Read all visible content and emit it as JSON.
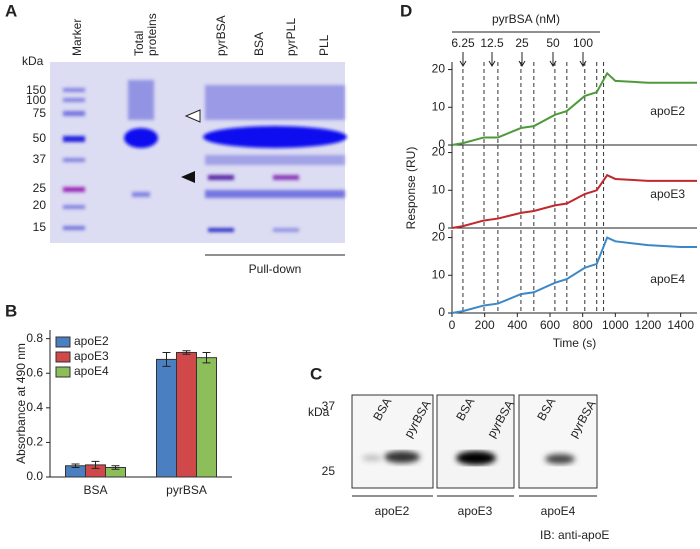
{
  "panels": {
    "a": {
      "label": "A",
      "unit": "kDa",
      "markers": [
        150,
        100,
        75,
        50,
        37,
        25,
        20,
        15
      ],
      "lanes": [
        "Marker",
        "Total",
        "proteins",
        "pyrBSA",
        "BSA",
        "pyrPLL",
        "PLL"
      ],
      "pulldown": "Pull-down"
    },
    "b": {
      "label": "B"
    },
    "c": {
      "label": "C",
      "unit": "kDa",
      "markers": [
        37,
        25
      ],
      "lanes": [
        "BSA",
        "pyrBSA",
        "BSA",
        "pyrBSA",
        "BSA",
        "pyrBSA"
      ],
      "blots": [
        "apoE2",
        "apoE3",
        "apoE4"
      ],
      "antibody": "IB: anti-apoE"
    },
    "d": {
      "label": "D",
      "header": "pyrBSA (nM)",
      "concentrations": [
        6.25,
        12.5,
        25,
        50,
        100
      ],
      "ylabel": "Response (RU)"
    }
  },
  "chart_data": [
    {
      "type": "bar",
      "ylabel": "Absorbance at 490 nm",
      "categories": [
        "BSA",
        "pyrBSA"
      ],
      "series": [
        {
          "name": "apoE2",
          "color": "#4a7fc1",
          "values": [
            0.065,
            0.68
          ],
          "errors": [
            0.01,
            0.04
          ]
        },
        {
          "name": "apoE3",
          "color": "#d0484a",
          "values": [
            0.07,
            0.72
          ],
          "errors": [
            0.02,
            0.01
          ]
        },
        {
          "name": "apoE4",
          "color": "#8cbf5a",
          "values": [
            0.055,
            0.69
          ],
          "errors": [
            0.01,
            0.03
          ]
        }
      ],
      "ylim": [
        0,
        0.85
      ],
      "yticks": [
        {
          "value": 0,
          "label": "0.0"
        },
        0.2,
        0.4,
        0.6,
        0.8
      ],
      "legend": "top-left"
    },
    {
      "type": "line",
      "x": [
        0,
        67,
        196,
        281,
        422,
        501,
        630,
        703,
        813,
        886,
        950,
        1000,
        1200,
        1400,
        1500
      ],
      "series": [
        {
          "name": "apoE2",
          "color": "#4e9a3a",
          "values": [
            0,
            0.5,
            2,
            2,
            4.5,
            5,
            8,
            9,
            13,
            14,
            19,
            17,
            16.5,
            16.5,
            16.5
          ]
        }
      ],
      "xlim": [
        0,
        1500
      ],
      "ylim": [
        0,
        22
      ],
      "yticks": [
        0,
        10,
        20
      ],
      "vlines": [
        67,
        196,
        281,
        422,
        501,
        630,
        703,
        813,
        886,
        928
      ]
    },
    {
      "type": "line",
      "x": [
        0,
        67,
        196,
        281,
        422,
        501,
        630,
        703,
        813,
        886,
        950,
        1000,
        1200,
        1400,
        1500
      ],
      "series": [
        {
          "name": "apoE3",
          "color": "#c0282c",
          "values": [
            0,
            0.5,
            2,
            2.5,
            4,
            4.5,
            6,
            6.5,
            9,
            10,
            14,
            13,
            12.5,
            12.5,
            12.5
          ]
        }
      ],
      "xlim": [
        0,
        1500
      ],
      "ylim": [
        0,
        22
      ],
      "yticks": [
        0,
        10,
        20
      ],
      "vlines": [
        67,
        196,
        281,
        422,
        501,
        630,
        703,
        813,
        886,
        928
      ]
    },
    {
      "type": "line",
      "x": [
        0,
        67,
        196,
        281,
        422,
        501,
        630,
        703,
        813,
        886,
        950,
        1000,
        1200,
        1400,
        1500
      ],
      "series": [
        {
          "name": "apoE4",
          "color": "#3a88c8",
          "values": [
            0,
            0.5,
            2,
            2.5,
            5,
            5.5,
            8,
            9,
            12,
            13,
            20,
            19,
            18,
            17.5,
            17.5
          ]
        }
      ],
      "xlim": [
        0,
        1500
      ],
      "ylim": [
        0,
        22
      ],
      "yticks": [
        0,
        10,
        20
      ],
      "xticks": [
        0,
        200,
        400,
        600,
        800,
        1000,
        1200,
        1400
      ],
      "xlabel": "Time (s)",
      "vlines": [
        67,
        196,
        281,
        422,
        501,
        630,
        703,
        813,
        886,
        928
      ]
    }
  ]
}
